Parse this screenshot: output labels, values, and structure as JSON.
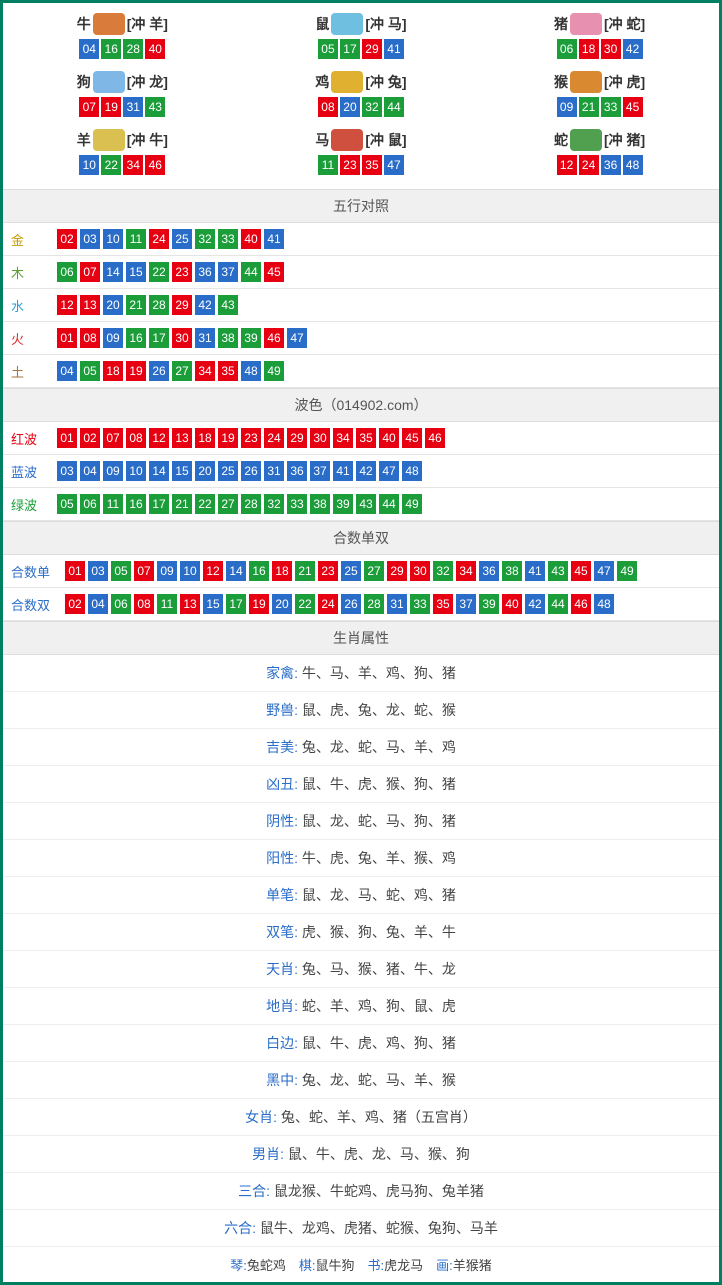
{
  "colors": {
    "red": "#e60012",
    "blue": "#2a6dc9",
    "green": "#1b9e3a",
    "label_gold": "#c49a00",
    "label_wood": "#5aa02c",
    "label_water": "#2a9fd6",
    "label_fire": "#e02e2e",
    "label_earth": "#a9743a",
    "label_red": "#e60012",
    "label_blue": "#2a6dc9",
    "label_green": "#1b9e3a"
  },
  "zodiac_icon_colors": {
    "牛": "#d97b3a",
    "鼠": "#6fbfe0",
    "猪": "#e890b0",
    "狗": "#7fb8e6",
    "鸡": "#e0b030",
    "猴": "#d98a30",
    "羊": "#d9c050",
    "马": "#d05040",
    "蛇": "#50a050"
  },
  "zodiac": [
    {
      "name": "牛",
      "conflict": "[冲 羊]",
      "balls": [
        {
          "n": "04",
          "c": "blue"
        },
        {
          "n": "16",
          "c": "green"
        },
        {
          "n": "28",
          "c": "green"
        },
        {
          "n": "40",
          "c": "red"
        }
      ]
    },
    {
      "name": "鼠",
      "conflict": "[冲 马]",
      "balls": [
        {
          "n": "05",
          "c": "green"
        },
        {
          "n": "17",
          "c": "green"
        },
        {
          "n": "29",
          "c": "red"
        },
        {
          "n": "41",
          "c": "blue"
        }
      ]
    },
    {
      "name": "猪",
      "conflict": "[冲 蛇]",
      "balls": [
        {
          "n": "06",
          "c": "green"
        },
        {
          "n": "18",
          "c": "red"
        },
        {
          "n": "30",
          "c": "red"
        },
        {
          "n": "42",
          "c": "blue"
        }
      ]
    },
    {
      "name": "狗",
      "conflict": "[冲 龙]",
      "balls": [
        {
          "n": "07",
          "c": "red"
        },
        {
          "n": "19",
          "c": "red"
        },
        {
          "n": "31",
          "c": "blue"
        },
        {
          "n": "43",
          "c": "green"
        }
      ]
    },
    {
      "name": "鸡",
      "conflict": "[冲 兔]",
      "balls": [
        {
          "n": "08",
          "c": "red"
        },
        {
          "n": "20",
          "c": "blue"
        },
        {
          "n": "32",
          "c": "green"
        },
        {
          "n": "44",
          "c": "green"
        }
      ]
    },
    {
      "name": "猴",
      "conflict": "[冲 虎]",
      "balls": [
        {
          "n": "09",
          "c": "blue"
        },
        {
          "n": "21",
          "c": "green"
        },
        {
          "n": "33",
          "c": "green"
        },
        {
          "n": "45",
          "c": "red"
        }
      ]
    },
    {
      "name": "羊",
      "conflict": "[冲 牛]",
      "balls": [
        {
          "n": "10",
          "c": "blue"
        },
        {
          "n": "22",
          "c": "green"
        },
        {
          "n": "34",
          "c": "red"
        },
        {
          "n": "46",
          "c": "red"
        }
      ]
    },
    {
      "name": "马",
      "conflict": "[冲 鼠]",
      "balls": [
        {
          "n": "11",
          "c": "green"
        },
        {
          "n": "23",
          "c": "red"
        },
        {
          "n": "35",
          "c": "red"
        },
        {
          "n": "47",
          "c": "blue"
        }
      ]
    },
    {
      "name": "蛇",
      "conflict": "[冲 猪]",
      "balls": [
        {
          "n": "12",
          "c": "red"
        },
        {
          "n": "24",
          "c": "red"
        },
        {
          "n": "36",
          "c": "blue"
        },
        {
          "n": "48",
          "c": "blue"
        }
      ]
    }
  ],
  "sections": {
    "wuxing": {
      "title": "五行对照",
      "rows": [
        {
          "label": "金",
          "label_color": "label_gold",
          "balls": [
            {
              "n": "02",
              "c": "red"
            },
            {
              "n": "03",
              "c": "blue"
            },
            {
              "n": "10",
              "c": "blue"
            },
            {
              "n": "11",
              "c": "green"
            },
            {
              "n": "24",
              "c": "red"
            },
            {
              "n": "25",
              "c": "blue"
            },
            {
              "n": "32",
              "c": "green"
            },
            {
              "n": "33",
              "c": "green"
            },
            {
              "n": "40",
              "c": "red"
            },
            {
              "n": "41",
              "c": "blue"
            }
          ]
        },
        {
          "label": "木",
          "label_color": "label_wood",
          "balls": [
            {
              "n": "06",
              "c": "green"
            },
            {
              "n": "07",
              "c": "red"
            },
            {
              "n": "14",
              "c": "blue"
            },
            {
              "n": "15",
              "c": "blue"
            },
            {
              "n": "22",
              "c": "green"
            },
            {
              "n": "23",
              "c": "red"
            },
            {
              "n": "36",
              "c": "blue"
            },
            {
              "n": "37",
              "c": "blue"
            },
            {
              "n": "44",
              "c": "green"
            },
            {
              "n": "45",
              "c": "red"
            }
          ]
        },
        {
          "label": "水",
          "label_color": "label_water",
          "balls": [
            {
              "n": "12",
              "c": "red"
            },
            {
              "n": "13",
              "c": "red"
            },
            {
              "n": "20",
              "c": "blue"
            },
            {
              "n": "21",
              "c": "green"
            },
            {
              "n": "28",
              "c": "green"
            },
            {
              "n": "29",
              "c": "red"
            },
            {
              "n": "42",
              "c": "blue"
            },
            {
              "n": "43",
              "c": "green"
            }
          ]
        },
        {
          "label": "火",
          "label_color": "label_fire",
          "balls": [
            {
              "n": "01",
              "c": "red"
            },
            {
              "n": "08",
              "c": "red"
            },
            {
              "n": "09",
              "c": "blue"
            },
            {
              "n": "16",
              "c": "green"
            },
            {
              "n": "17",
              "c": "green"
            },
            {
              "n": "30",
              "c": "red"
            },
            {
              "n": "31",
              "c": "blue"
            },
            {
              "n": "38",
              "c": "green"
            },
            {
              "n": "39",
              "c": "green"
            },
            {
              "n": "46",
              "c": "red"
            },
            {
              "n": "47",
              "c": "blue"
            }
          ]
        },
        {
          "label": "土",
          "label_color": "label_earth",
          "balls": [
            {
              "n": "04",
              "c": "blue"
            },
            {
              "n": "05",
              "c": "green"
            },
            {
              "n": "18",
              "c": "red"
            },
            {
              "n": "19",
              "c": "red"
            },
            {
              "n": "26",
              "c": "blue"
            },
            {
              "n": "27",
              "c": "green"
            },
            {
              "n": "34",
              "c": "red"
            },
            {
              "n": "35",
              "c": "red"
            },
            {
              "n": "48",
              "c": "blue"
            },
            {
              "n": "49",
              "c": "green"
            }
          ]
        }
      ]
    },
    "bose": {
      "title": "波色（014902.com）",
      "rows": [
        {
          "label": "红波",
          "label_color": "label_red",
          "balls": [
            {
              "n": "01",
              "c": "red"
            },
            {
              "n": "02",
              "c": "red"
            },
            {
              "n": "07",
              "c": "red"
            },
            {
              "n": "08",
              "c": "red"
            },
            {
              "n": "12",
              "c": "red"
            },
            {
              "n": "13",
              "c": "red"
            },
            {
              "n": "18",
              "c": "red"
            },
            {
              "n": "19",
              "c": "red"
            },
            {
              "n": "23",
              "c": "red"
            },
            {
              "n": "24",
              "c": "red"
            },
            {
              "n": "29",
              "c": "red"
            },
            {
              "n": "30",
              "c": "red"
            },
            {
              "n": "34",
              "c": "red"
            },
            {
              "n": "35",
              "c": "red"
            },
            {
              "n": "40",
              "c": "red"
            },
            {
              "n": "45",
              "c": "red"
            },
            {
              "n": "46",
              "c": "red"
            }
          ]
        },
        {
          "label": "蓝波",
          "label_color": "label_blue",
          "balls": [
            {
              "n": "03",
              "c": "blue"
            },
            {
              "n": "04",
              "c": "blue"
            },
            {
              "n": "09",
              "c": "blue"
            },
            {
              "n": "10",
              "c": "blue"
            },
            {
              "n": "14",
              "c": "blue"
            },
            {
              "n": "15",
              "c": "blue"
            },
            {
              "n": "20",
              "c": "blue"
            },
            {
              "n": "25",
              "c": "blue"
            },
            {
              "n": "26",
              "c": "blue"
            },
            {
              "n": "31",
              "c": "blue"
            },
            {
              "n": "36",
              "c": "blue"
            },
            {
              "n": "37",
              "c": "blue"
            },
            {
              "n": "41",
              "c": "blue"
            },
            {
              "n": "42",
              "c": "blue"
            },
            {
              "n": "47",
              "c": "blue"
            },
            {
              "n": "48",
              "c": "blue"
            }
          ]
        },
        {
          "label": "绿波",
          "label_color": "label_green",
          "balls": [
            {
              "n": "05",
              "c": "green"
            },
            {
              "n": "06",
              "c": "green"
            },
            {
              "n": "11",
              "c": "green"
            },
            {
              "n": "16",
              "c": "green"
            },
            {
              "n": "17",
              "c": "green"
            },
            {
              "n": "21",
              "c": "green"
            },
            {
              "n": "22",
              "c": "green"
            },
            {
              "n": "27",
              "c": "green"
            },
            {
              "n": "28",
              "c": "green"
            },
            {
              "n": "32",
              "c": "green"
            },
            {
              "n": "33",
              "c": "green"
            },
            {
              "n": "38",
              "c": "green"
            },
            {
              "n": "39",
              "c": "green"
            },
            {
              "n": "43",
              "c": "green"
            },
            {
              "n": "44",
              "c": "green"
            },
            {
              "n": "49",
              "c": "green"
            }
          ]
        }
      ]
    },
    "heshu": {
      "title": "合数单双",
      "rows": [
        {
          "label": "合数单",
          "label_color": "label_blue",
          "balls": [
            {
              "n": "01",
              "c": "red"
            },
            {
              "n": "03",
              "c": "blue"
            },
            {
              "n": "05",
              "c": "green"
            },
            {
              "n": "07",
              "c": "red"
            },
            {
              "n": "09",
              "c": "blue"
            },
            {
              "n": "10",
              "c": "blue"
            },
            {
              "n": "12",
              "c": "red"
            },
            {
              "n": "14",
              "c": "blue"
            },
            {
              "n": "16",
              "c": "green"
            },
            {
              "n": "18",
              "c": "red"
            },
            {
              "n": "21",
              "c": "green"
            },
            {
              "n": "23",
              "c": "red"
            },
            {
              "n": "25",
              "c": "blue"
            },
            {
              "n": "27",
              "c": "green"
            },
            {
              "n": "29",
              "c": "red"
            },
            {
              "n": "30",
              "c": "red"
            },
            {
              "n": "32",
              "c": "green"
            },
            {
              "n": "34",
              "c": "red"
            },
            {
              "n": "36",
              "c": "blue"
            },
            {
              "n": "38",
              "c": "green"
            },
            {
              "n": "41",
              "c": "blue"
            },
            {
              "n": "43",
              "c": "green"
            },
            {
              "n": "45",
              "c": "red"
            },
            {
              "n": "47",
              "c": "blue"
            },
            {
              "n": "49",
              "c": "green"
            }
          ]
        },
        {
          "label": "合数双",
          "label_color": "label_blue",
          "balls": [
            {
              "n": "02",
              "c": "red"
            },
            {
              "n": "04",
              "c": "blue"
            },
            {
              "n": "06",
              "c": "green"
            },
            {
              "n": "08",
              "c": "red"
            },
            {
              "n": "11",
              "c": "green"
            },
            {
              "n": "13",
              "c": "red"
            },
            {
              "n": "15",
              "c": "blue"
            },
            {
              "n": "17",
              "c": "green"
            },
            {
              "n": "19",
              "c": "red"
            },
            {
              "n": "20",
              "c": "blue"
            },
            {
              "n": "22",
              "c": "green"
            },
            {
              "n": "24",
              "c": "red"
            },
            {
              "n": "26",
              "c": "blue"
            },
            {
              "n": "28",
              "c": "green"
            },
            {
              "n": "31",
              "c": "blue"
            },
            {
              "n": "33",
              "c": "green"
            },
            {
              "n": "35",
              "c": "red"
            },
            {
              "n": "37",
              "c": "blue"
            },
            {
              "n": "39",
              "c": "green"
            },
            {
              "n": "40",
              "c": "red"
            },
            {
              "n": "42",
              "c": "blue"
            },
            {
              "n": "44",
              "c": "green"
            },
            {
              "n": "46",
              "c": "red"
            },
            {
              "n": "48",
              "c": "blue"
            }
          ]
        }
      ]
    }
  },
  "attributes": {
    "title": "生肖属性",
    "rows": [
      {
        "label": "家禽:",
        "value": " 牛、马、羊、鸡、狗、猪"
      },
      {
        "label": "野兽:",
        "value": " 鼠、虎、兔、龙、蛇、猴"
      },
      {
        "label": "吉美:",
        "value": " 兔、龙、蛇、马、羊、鸡"
      },
      {
        "label": "凶丑:",
        "value": " 鼠、牛、虎、猴、狗、猪"
      },
      {
        "label": "阴性:",
        "value": " 鼠、龙、蛇、马、狗、猪"
      },
      {
        "label": "阳性:",
        "value": " 牛、虎、兔、羊、猴、鸡"
      },
      {
        "label": "单笔:",
        "value": " 鼠、龙、马、蛇、鸡、猪"
      },
      {
        "label": "双笔:",
        "value": " 虎、猴、狗、兔、羊、牛"
      },
      {
        "label": "天肖:",
        "value": " 兔、马、猴、猪、牛、龙"
      },
      {
        "label": "地肖:",
        "value": " 蛇、羊、鸡、狗、鼠、虎"
      },
      {
        "label": "白边:",
        "value": " 鼠、牛、虎、鸡、狗、猪"
      },
      {
        "label": "黑中:",
        "value": " 兔、龙、蛇、马、羊、猴"
      },
      {
        "label": "女肖:",
        "value": " 兔、蛇、羊、鸡、猪（五宫肖）"
      },
      {
        "label": "男肖:",
        "value": " 鼠、牛、虎、龙、马、猴、狗"
      },
      {
        "label": "三合:",
        "value": " 鼠龙猴、牛蛇鸡、虎马狗、兔羊猪"
      },
      {
        "label": "六合:",
        "value": " 鼠牛、龙鸡、虎猪、蛇猴、兔狗、马羊"
      }
    ]
  },
  "footer": {
    "items": [
      {
        "lbl": "琴:",
        "val": "兔蛇鸡"
      },
      {
        "lbl": "棋:",
        "val": "鼠牛狗"
      },
      {
        "lbl": "书:",
        "val": "虎龙马"
      },
      {
        "lbl": "画:",
        "val": "羊猴猪"
      }
    ]
  }
}
